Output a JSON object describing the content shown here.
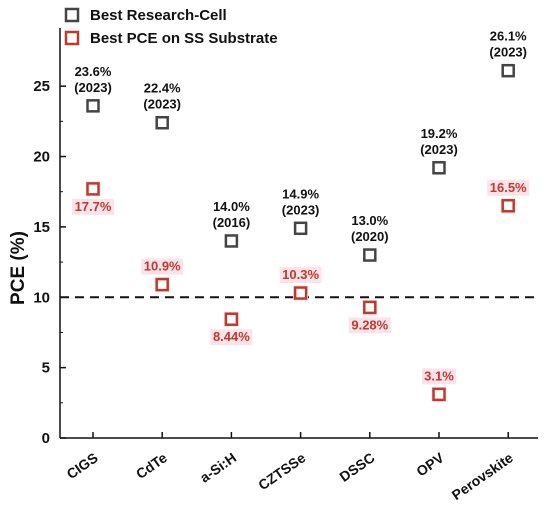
{
  "chart_data": {
    "type": "scatter",
    "ylabel": "PCE (%)",
    "ylim": [
      0,
      27
    ],
    "yticks": [
      "0",
      "5",
      "10",
      "15",
      "20",
      "25"
    ],
    "reference_line": 10,
    "categories": [
      "CIGS",
      "CdTe",
      "a-Si:H",
      "CZTSSe",
      "DSSC",
      "OPV",
      "Perovskite"
    ],
    "series": [
      {
        "name": "Best Research-Cell",
        "color": "#444444",
        "values": [
          23.6,
          22.4,
          14.0,
          14.9,
          13.0,
          19.2,
          26.1
        ],
        "labels": [
          "23.6%",
          "22.4%",
          "14.0%",
          "14.9%",
          "13.0%",
          "19.2%",
          "26.1%"
        ],
        "years": [
          "(2023)",
          "(2023)",
          "(2016)",
          "(2023)",
          "(2020)",
          "(2023)",
          "(2023)"
        ]
      },
      {
        "name": "Best PCE on SS Substrate",
        "color": "#c0392b",
        "values": [
          17.7,
          10.9,
          8.44,
          10.3,
          9.28,
          3.1,
          16.5
        ],
        "labels": [
          "17.7%",
          "10.9%",
          "8.44%",
          "10.3%",
          "9.28%",
          "3.1%",
          "16.5%"
        ]
      }
    ],
    "legend_position": "top-left"
  }
}
